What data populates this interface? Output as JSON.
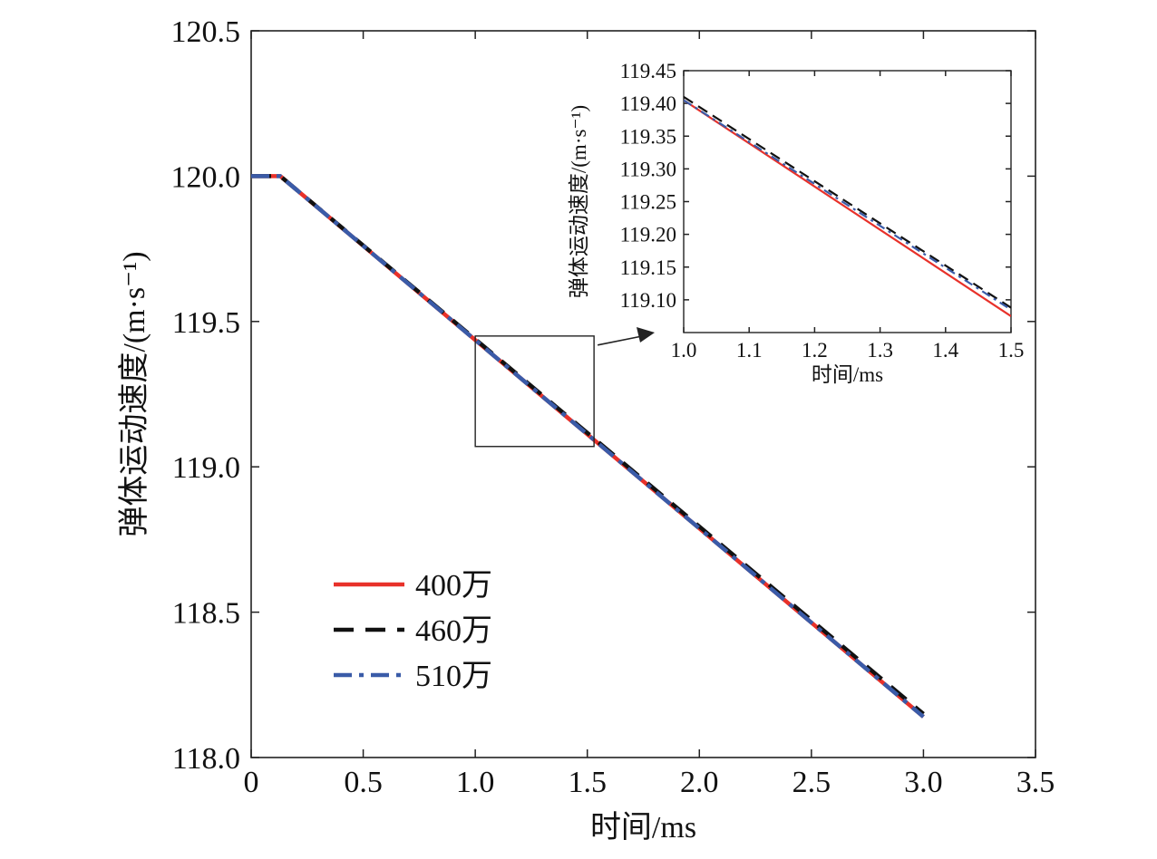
{
  "chart_data": [
    {
      "type": "line",
      "xlabel": "时间/ms",
      "ylabel": "弹体运动速度/(m·s⁻¹)",
      "xlim": [
        0,
        3.5
      ],
      "ylim": [
        118.0,
        120.5
      ],
      "xticks": [
        0,
        0.5,
        1.0,
        1.5,
        2.0,
        2.5,
        3.0,
        3.5
      ],
      "xtick_labels": [
        "0",
        "0.5",
        "1.0",
        "1.5",
        "2.0",
        "2.5",
        "3.0",
        "3.5"
      ],
      "yticks": [
        118.0,
        118.5,
        119.0,
        119.5,
        120.0,
        120.5
      ],
      "ytick_labels": [
        "118.0",
        "118.5",
        "119.0",
        "119.5",
        "120.0",
        "120.5"
      ],
      "grid": false,
      "legend_position": "bottom-left",
      "series": [
        {
          "name": "400万",
          "color": "#e8312a",
          "style": "solid",
          "x": [
            0,
            0.13,
            3.0
          ],
          "y": [
            120.0,
            120.0,
            118.14
          ]
        },
        {
          "name": "460万",
          "color": "#111111",
          "style": "dashed",
          "x": [
            0,
            0.13,
            3.0
          ],
          "y": [
            120.0,
            120.0,
            118.15
          ]
        },
        {
          "name": "510万",
          "color": "#3a5ba8",
          "style": "dashdot",
          "x": [
            0,
            0.13,
            3.0
          ],
          "y": [
            120.0,
            120.0,
            118.14
          ]
        }
      ],
      "zoom_box": {
        "x": [
          1.0,
          1.53
        ],
        "y": [
          119.07,
          119.45
        ]
      }
    },
    {
      "type": "line",
      "role": "inset",
      "xlabel": "时间/ms",
      "ylabel": "弹体运动速度/(m·s⁻¹)",
      "xlim": [
        1.0,
        1.5
      ],
      "ylim": [
        119.05,
        119.45
      ],
      "xticks": [
        1.0,
        1.1,
        1.2,
        1.3,
        1.4,
        1.5
      ],
      "xtick_labels": [
        "1.0",
        "1.1",
        "1.2",
        "1.3",
        "1.4",
        "1.5"
      ],
      "yticks": [
        119.1,
        119.15,
        119.2,
        119.25,
        119.3,
        119.35,
        119.4,
        119.45
      ],
      "ytick_labels": [
        "119.10",
        "119.15",
        "119.20",
        "119.25",
        "119.30",
        "119.35",
        "119.40",
        "119.45"
      ],
      "grid": false,
      "series": [
        {
          "name": "400万",
          "color": "#e8312a",
          "style": "solid",
          "x": [
            1.0,
            1.5
          ],
          "y": [
            119.405,
            119.075
          ]
        },
        {
          "name": "460万",
          "color": "#111111",
          "style": "dashed",
          "x": [
            1.0,
            1.5
          ],
          "y": [
            119.41,
            119.088
          ]
        },
        {
          "name": "510万",
          "color": "#3a5ba8",
          "style": "dashdot",
          "x": [
            1.0,
            1.5
          ],
          "y": [
            119.405,
            119.085
          ]
        }
      ]
    }
  ]
}
